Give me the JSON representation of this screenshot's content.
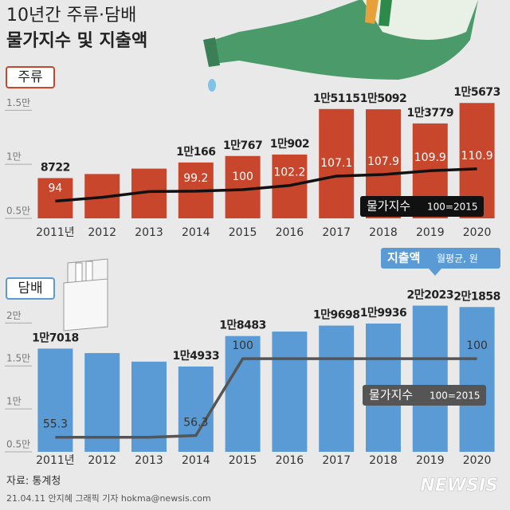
{
  "title_lines": [
    "10년간 주류·담배",
    "물가지수 및 지출액"
  ],
  "source": "자료: 통계청",
  "credit": "21.04.11 안지혜 그래픽 기자 hokma@newsis.com",
  "brand": "NEWSIS",
  "chart_data": [
    {
      "type": "bar",
      "label": "주류",
      "categories": [
        "2011년",
        "2012",
        "2013",
        "2014",
        "2015",
        "2016",
        "2017",
        "2018",
        "2019",
        "2020"
      ],
      "ylim": [
        5000,
        16500
      ],
      "yticks": [
        {
          "value": 5000,
          "label": "0.5만"
        },
        {
          "value": 10000,
          "label": "1만"
        },
        {
          "value": 15000,
          "label": "1.5만"
        }
      ],
      "y2lim": [
        85,
        150
      ],
      "series": [
        {
          "name": "지출액",
          "color": "#c8462c",
          "values": [
            8722,
            9100,
            9600,
            10166,
            10767,
            10902,
            15115,
            15092,
            13779,
            15673
          ],
          "value_labels": [
            "8722",
            null,
            null,
            "1만166",
            "1만767",
            "1만902",
            "1만5115",
            "1만5092",
            "1만3779",
            "1만5673"
          ]
        },
        {
          "name": "물가지수",
          "note": "100=2015",
          "color": "#111111",
          "axis": "y2",
          "values": [
            94,
            96,
            99,
            99.2,
            100,
            102.2,
            107.1,
            107.9,
            109.9,
            110.9
          ],
          "value_labels": [
            "94",
            null,
            null,
            "99.2",
            "100",
            "102.2",
            "107.1",
            "107.9",
            "109.9",
            "110.9"
          ]
        }
      ]
    },
    {
      "type": "bar",
      "label": "담배",
      "categories": [
        "2011년",
        "2012",
        "2013",
        "2014",
        "2015",
        "2016",
        "2017",
        "2018",
        "2019",
        "2020"
      ],
      "ylim": [
        5000,
        23000
      ],
      "yticks": [
        {
          "value": 5000,
          "label": "0.5만"
        },
        {
          "value": 10000,
          "label": "1만"
        },
        {
          "value": 15000,
          "label": "1.5만"
        },
        {
          "value": 20000,
          "label": "2만"
        }
      ],
      "y2lim": [
        47,
        135
      ],
      "series": [
        {
          "name": "지출액",
          "note": "월평균, 원",
          "color": "#5b9bd5",
          "values": [
            17018,
            16500,
            15500,
            14933,
            18483,
            19000,
            19698,
            19936,
            22023,
            21858
          ],
          "value_labels": [
            "1만7018",
            null,
            null,
            "1만4933",
            "1만8483",
            null,
            "1만9698",
            "1만9936",
            "2만2023",
            "2만1858"
          ]
        },
        {
          "name": "물가지수",
          "note": "100=2015",
          "color": "#555555",
          "axis": "y2",
          "values": [
            55.3,
            55.3,
            55.3,
            56.3,
            100,
            100,
            100,
            100,
            100,
            100
          ],
          "value_labels": [
            "55.3",
            null,
            null,
            "56.3",
            "100",
            null,
            null,
            null,
            null,
            "100"
          ]
        }
      ]
    }
  ]
}
